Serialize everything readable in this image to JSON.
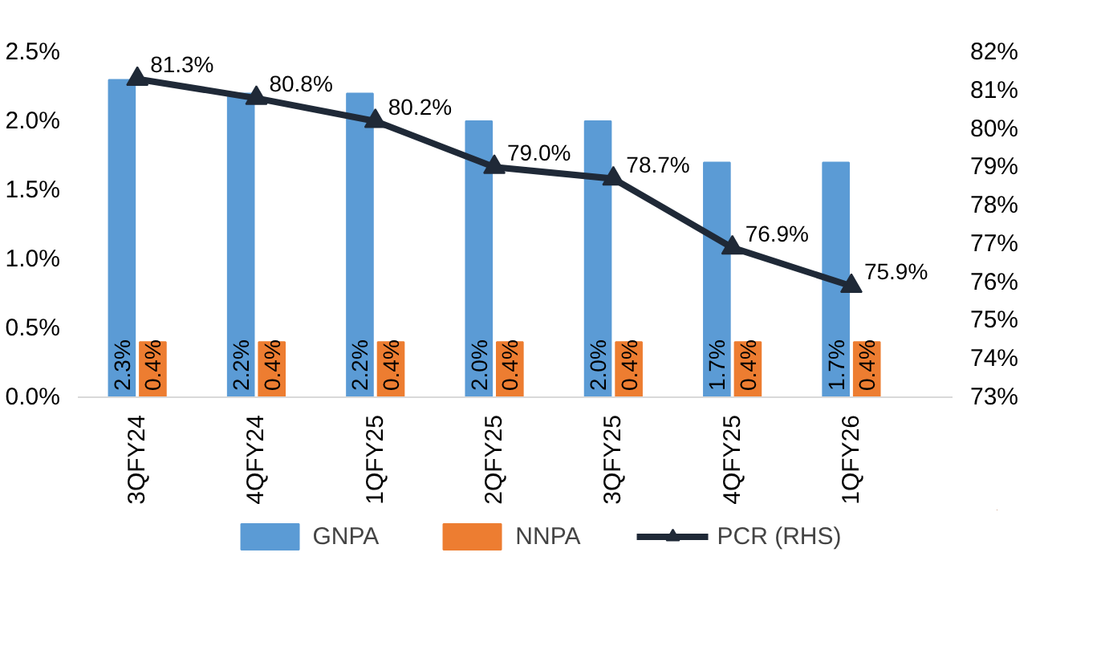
{
  "chart_data": {
    "type": "bar",
    "categories": [
      "3QFY24",
      "4QFY24",
      "1QFY25",
      "2QFY25",
      "3QFY25",
      "4QFY25",
      "1QFY26"
    ],
    "series": [
      {
        "name": "GNPA",
        "color": "#5b9bd5",
        "values": [
          2.3,
          2.2,
          2.2,
          2.0,
          2.0,
          1.7,
          1.7
        ],
        "value_labels": [
          "2.3%",
          "2.2%",
          "2.2%",
          "2.0%",
          "2.0%",
          "1.7%",
          "1.7%"
        ]
      },
      {
        "name": "NNPA",
        "color": "#ed7d31",
        "values": [
          0.4,
          0.4,
          0.4,
          0.4,
          0.4,
          0.4,
          0.4
        ],
        "value_labels": [
          "0.4%",
          "0.4%",
          "0.4%",
          "0.4%",
          "0.4%",
          "0.4%",
          "0.4%"
        ]
      },
      {
        "name": "PCR (RHS)",
        "type": "line",
        "axis": "y2",
        "color": "#1f2937",
        "marker": "triangle",
        "values": [
          81.3,
          80.8,
          80.2,
          79.0,
          78.7,
          76.9,
          75.9
        ],
        "value_labels": [
          "81.3%",
          "80.8%",
          "80.2%",
          "79.0%",
          "78.7%",
          "76.9%",
          "75.9%"
        ]
      }
    ],
    "ylim": [
      0,
      2.5
    ],
    "yticks": [
      {
        "value": 0,
        "label": "0.0%"
      },
      {
        "value": 0.5,
        "label": "0.5%"
      },
      {
        "value": 1.0,
        "label": "1.0%"
      },
      {
        "value": 1.5,
        "label": "1.5%"
      },
      {
        "value": 2.0,
        "label": "2.0%"
      },
      {
        "value": 2.5,
        "label": "2.5%"
      }
    ],
    "y2lim": [
      73,
      82
    ],
    "y2ticks": [
      {
        "value": 73,
        "label": "73%"
      },
      {
        "value": 74,
        "label": "74%"
      },
      {
        "value": 75,
        "label": "75%"
      },
      {
        "value": 76,
        "label": "76%"
      },
      {
        "value": 77,
        "label": "77%"
      },
      {
        "value": 78,
        "label": "78%"
      },
      {
        "value": 79,
        "label": "79%"
      },
      {
        "value": 80,
        "label": "80%"
      },
      {
        "value": 81,
        "label": "81%"
      },
      {
        "value": 82,
        "label": "82%"
      }
    ],
    "grid": false,
    "legend": "bottom"
  }
}
